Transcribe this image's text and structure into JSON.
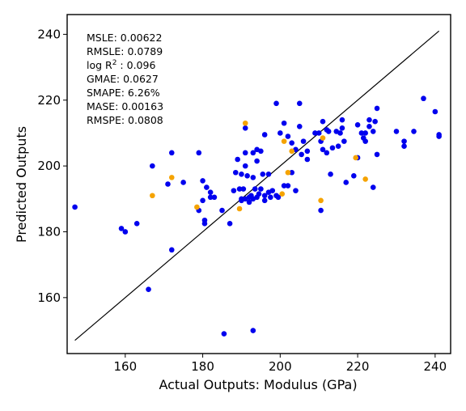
{
  "chart_data": {
    "type": "scatter",
    "title": "",
    "xlabel": "Actual Outputs: Modulus (GPa)",
    "ylabel": "Predicted Outputs",
    "xlim": [
      145,
      244
    ],
    "ylim": [
      143,
      246
    ],
    "xticks": [
      160,
      180,
      200,
      220,
      240
    ],
    "yticks": [
      160,
      180,
      200,
      220,
      240
    ],
    "grid": false,
    "reference_line": {
      "x": [
        147,
        241
      ],
      "y": [
        147,
        241
      ]
    },
    "metrics": [
      {
        "label": "MSLE: 0.00622"
      },
      {
        "label": "RMSLE: 0.0789"
      },
      {
        "label": "log R",
        "sup": "2",
        "suffix": " : 0.096"
      },
      {
        "label": "GMAE: 0.0627"
      },
      {
        "label": "SMAPE: 6.26%"
      },
      {
        "label": "MASE: 0.00163"
      },
      {
        "label": "RMSPE: 0.0808"
      }
    ],
    "colors": {
      "blue": "#0000ee",
      "orange": "#f5a300"
    },
    "series": [
      {
        "color": "blue",
        "points": [
          [
            147,
            187.5
          ],
          [
            159,
            181
          ],
          [
            160,
            180
          ],
          [
            163,
            182.5
          ],
          [
            166,
            162.5
          ],
          [
            167,
            200
          ],
          [
            171,
            194.5
          ],
          [
            172,
            174.5
          ],
          [
            172,
            204
          ],
          [
            175,
            195
          ],
          [
            179,
            186.5
          ],
          [
            179,
            204
          ],
          [
            180,
            195.5
          ],
          [
            180,
            189.5
          ],
          [
            180.5,
            183.5
          ],
          [
            180.5,
            182.5
          ],
          [
            181,
            193.5
          ],
          [
            182,
            192
          ],
          [
            182,
            190.5
          ],
          [
            183,
            190.5
          ],
          [
            185,
            186.5
          ],
          [
            185.5,
            149
          ],
          [
            187,
            182.5
          ],
          [
            188,
            192.5
          ],
          [
            188.5,
            198
          ],
          [
            189,
            202
          ],
          [
            189.5,
            193
          ],
          [
            190,
            190
          ],
          [
            190,
            189.5
          ],
          [
            190,
            197.5
          ],
          [
            190.5,
            193
          ],
          [
            191,
            211.5
          ],
          [
            191,
            190
          ],
          [
            191,
            204
          ],
          [
            191,
            200
          ],
          [
            191.5,
            197
          ],
          [
            192,
            190.5
          ],
          [
            192,
            189
          ],
          [
            192.5,
            191
          ],
          [
            193,
            150
          ],
          [
            193,
            190
          ],
          [
            193,
            196.5
          ],
          [
            193,
            204
          ],
          [
            193.5,
            193
          ],
          [
            194,
            190.5
          ],
          [
            194,
            201.5
          ],
          [
            194,
            205
          ],
          [
            194.5,
            191.5
          ],
          [
            195,
            204.5
          ],
          [
            195,
            193
          ],
          [
            195.5,
            197.5
          ],
          [
            196,
            189.5
          ],
          [
            196,
            209.5
          ],
          [
            196,
            191
          ],
          [
            197,
            192
          ],
          [
            197,
            197.5
          ],
          [
            197.5,
            190.5
          ],
          [
            198,
            192.5
          ],
          [
            199,
            219
          ],
          [
            199,
            191
          ],
          [
            199.5,
            190.5
          ],
          [
            200,
            210
          ],
          [
            201,
            213
          ],
          [
            201,
            194
          ],
          [
            202,
            209
          ],
          [
            202,
            194
          ],
          [
            203,
            198
          ],
          [
            203,
            207
          ],
          [
            204,
            192.5
          ],
          [
            204,
            205
          ],
          [
            205,
            219
          ],
          [
            205,
            212
          ],
          [
            205.5,
            203.5
          ],
          [
            206,
            207.5
          ],
          [
            207,
            204.5
          ],
          [
            207,
            202
          ],
          [
            209,
            210
          ],
          [
            210,
            210
          ],
          [
            210.5,
            186.5
          ],
          [
            210.5,
            207.5
          ],
          [
            211,
            213.5
          ],
          [
            211,
            205
          ],
          [
            212,
            211
          ],
          [
            212,
            204
          ],
          [
            212.5,
            210.5
          ],
          [
            213,
            197.5
          ],
          [
            213.5,
            205.5
          ],
          [
            214.5,
            210.5
          ],
          [
            215,
            206
          ],
          [
            215.5,
            210
          ],
          [
            216,
            214
          ],
          [
            216,
            211.5
          ],
          [
            216.5,
            207.5
          ],
          [
            217,
            195
          ],
          [
            219,
            197
          ],
          [
            220,
            202.5
          ],
          [
            220,
            212.5
          ],
          [
            221,
            210
          ],
          [
            221.5,
            208.5
          ],
          [
            222,
            207.5
          ],
          [
            222,
            210
          ],
          [
            223,
            212
          ],
          [
            223,
            214
          ],
          [
            224,
            193.5
          ],
          [
            224,
            210.5
          ],
          [
            224.5,
            213.5
          ],
          [
            225,
            203.5
          ],
          [
            225,
            217.5
          ],
          [
            230,
            210.5
          ],
          [
            232,
            207.5
          ],
          [
            232,
            206
          ],
          [
            234.5,
            210.5
          ],
          [
            237,
            220.5
          ],
          [
            240,
            216.5
          ],
          [
            241,
            209.5
          ],
          [
            241,
            209
          ]
        ]
      },
      {
        "color": "orange",
        "points": [
          [
            167,
            191
          ],
          [
            172,
            196.5
          ],
          [
            178.5,
            187.5
          ],
          [
            189.5,
            187
          ],
          [
            191,
            213
          ],
          [
            200.5,
            191.5
          ],
          [
            201,
            207.5
          ],
          [
            202,
            198
          ],
          [
            203,
            204.5
          ],
          [
            210.5,
            189.5
          ],
          [
            211,
            208.5
          ],
          [
            219.5,
            202.5
          ],
          [
            222,
            196
          ]
        ]
      }
    ]
  }
}
